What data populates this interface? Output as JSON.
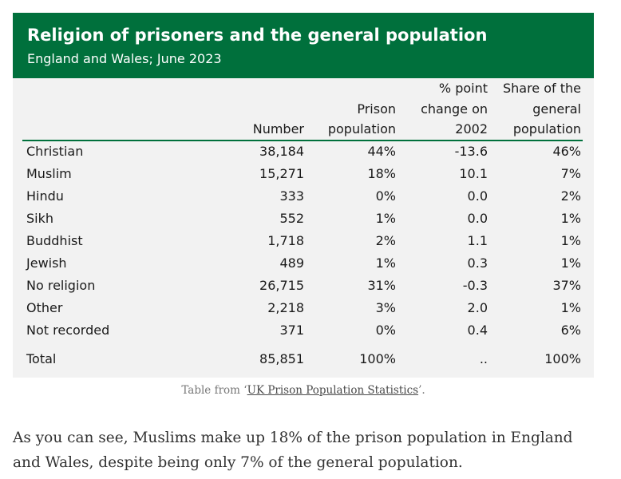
{
  "table": {
    "title": "Religion of prisoners and the general population",
    "subtitle": "England and Wales; June 2023",
    "columns": {
      "number": [
        "Number"
      ],
      "prison": [
        "Prison",
        "population"
      ],
      "change": [
        "% point",
        "change on",
        "2002"
      ],
      "share": [
        "Share of the",
        "general",
        "population"
      ]
    },
    "rows": [
      {
        "religion": "Christian",
        "number": "38,184",
        "prison": "44%",
        "change": "-13.6",
        "share": "46%"
      },
      {
        "religion": "Muslim",
        "number": "15,271",
        "prison": "18%",
        "change": "10.1",
        "share": "7%"
      },
      {
        "religion": "Hindu",
        "number": "333",
        "prison": "0%",
        "change": "0.0",
        "share": "2%"
      },
      {
        "religion": "Sikh",
        "number": "552",
        "prison": "1%",
        "change": "0.0",
        "share": "1%"
      },
      {
        "religion": "Buddhist",
        "number": "1,718",
        "prison": "2%",
        "change": "1.1",
        "share": "1%"
      },
      {
        "religion": "Jewish",
        "number": "489",
        "prison": "1%",
        "change": "0.3",
        "share": "1%"
      },
      {
        "religion": "No religion",
        "number": "26,715",
        "prison": "31%",
        "change": "-0.3",
        "share": "37%"
      },
      {
        "religion": "Other",
        "number": "2,218",
        "prison": "3%",
        "change": "2.0",
        "share": "1%"
      },
      {
        "religion": "Not recorded",
        "number": "371",
        "prison": "0%",
        "change": "0.4",
        "share": "6%"
      }
    ],
    "total": {
      "religion": "Total",
      "number": "85,851",
      "prison": "100%",
      "change": "..",
      "share": "100%"
    }
  },
  "caption": {
    "prefix": "Table from ‘",
    "link": "UK Prison Population Statistics",
    "suffix": "’."
  },
  "article": {
    "paragraph": "As you can see, Muslims make up 18% of the prison population in England and Wales, despite being only 7% of the general population."
  },
  "colors": {
    "header_green": "#00703c",
    "table_bg": "#f2f2f2"
  }
}
